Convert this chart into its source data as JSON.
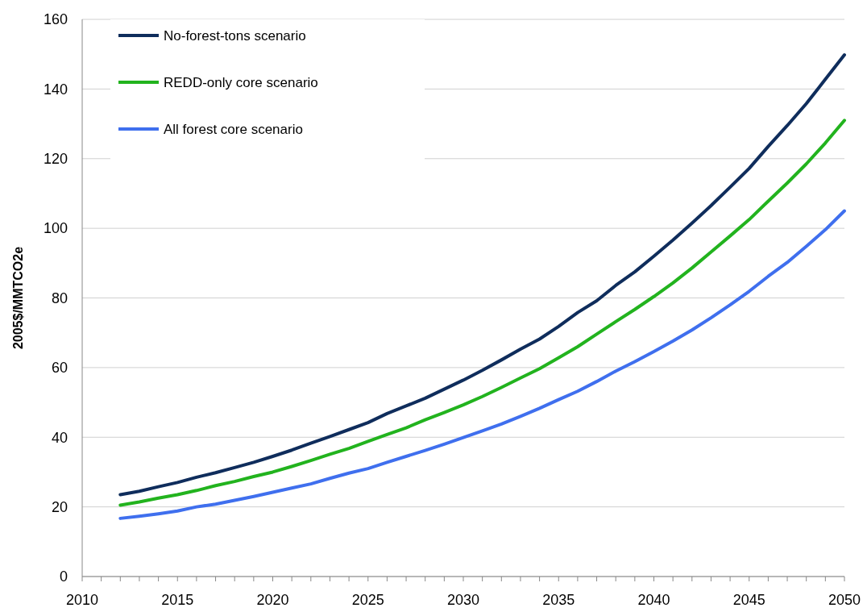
{
  "chart_data": {
    "type": "line",
    "ylabel": "2005$/MMTCO2e",
    "x": [
      2012,
      2013,
      2014,
      2015,
      2016,
      2017,
      2018,
      2019,
      2020,
      2021,
      2022,
      2023,
      2024,
      2025,
      2026,
      2027,
      2028,
      2029,
      2030,
      2031,
      2032,
      2033,
      2034,
      2035,
      2036,
      2037,
      2038,
      2039,
      2040,
      2041,
      2042,
      2043,
      2044,
      2045,
      2046,
      2047,
      2048,
      2049,
      2050
    ],
    "series": [
      {
        "name": "No-forest-tons scenario",
        "color": "#0f2d5c",
        "values": [
          23.5,
          24.5,
          25.8,
          27,
          28.5,
          29.8,
          31.3,
          32.8,
          34.5,
          36.3,
          38.3,
          40.2,
          42.2,
          44.2,
          46.8,
          49,
          51.2,
          53.8,
          56.4,
          59.2,
          62.2,
          65.3,
          68.2,
          71.8,
          75.8,
          79.2,
          83.6,
          87.5,
          92,
          96.6,
          101.5,
          106.5,
          111.8,
          117.2,
          123.5,
          129.5,
          135.8,
          142.8,
          149.8
        ]
      },
      {
        "name": "REDD-only core scenario",
        "color": "#22b31e",
        "values": [
          20.5,
          21.4,
          22.5,
          23.5,
          24.7,
          26.1,
          27.3,
          28.7,
          30,
          31.6,
          33.3,
          35.1,
          36.8,
          38.8,
          40.8,
          42.7,
          45,
          47.1,
          49.3,
          51.7,
          54.3,
          57,
          59.7,
          62.8,
          66,
          69.6,
          73.2,
          76.7,
          80.4,
          84.3,
          88.6,
          93.2,
          97.8,
          102.5,
          107.8,
          113,
          118.5,
          124.5,
          131
        ]
      },
      {
        "name": "All forest core scenario",
        "color": "#3f6fee",
        "values": [
          16.7,
          17.3,
          18,
          18.8,
          20,
          20.8,
          21.9,
          23,
          24.2,
          25.4,
          26.6,
          28.2,
          29.7,
          31,
          32.8,
          34.5,
          36.2,
          38,
          39.9,
          41.8,
          43.8,
          46,
          48.3,
          50.8,
          53.2,
          56,
          59,
          61.7,
          64.6,
          67.6,
          70.8,
          74.3,
          78,
          81.9,
          86.2,
          90.2,
          94.8,
          99.6,
          105
        ]
      }
    ],
    "xlim": [
      2010,
      2050
    ],
    "xticks": [
      2010,
      {
        "value": 2011,
        "label": null
      },
      {
        "value": 2012,
        "label": null
      },
      {
        "value": 2013,
        "label": null
      },
      {
        "value": 2014,
        "label": null
      },
      2015,
      {
        "value": 2016,
        "label": null
      },
      {
        "value": 2017,
        "label": null
      },
      {
        "value": 2018,
        "label": null
      },
      {
        "value": 2019,
        "label": null
      },
      2020,
      {
        "value": 2021,
        "label": null
      },
      {
        "value": 2022,
        "label": null
      },
      {
        "value": 2023,
        "label": null
      },
      {
        "value": 2024,
        "label": null
      },
      2025,
      {
        "value": 2026,
        "label": null
      },
      {
        "value": 2027,
        "label": null
      },
      {
        "value": 2028,
        "label": null
      },
      {
        "value": 2029,
        "label": null
      },
      2030,
      {
        "value": 2031,
        "label": null
      },
      {
        "value": 2032,
        "label": null
      },
      {
        "value": 2033,
        "label": null
      },
      {
        "value": 2034,
        "label": null
      },
      2035,
      {
        "value": 2036,
        "label": null
      },
      {
        "value": 2037,
        "label": null
      },
      {
        "value": 2038,
        "label": null
      },
      {
        "value": 2039,
        "label": null
      },
      2040,
      {
        "value": 2041,
        "label": null
      },
      {
        "value": 2042,
        "label": null
      },
      {
        "value": 2043,
        "label": null
      },
      {
        "value": 2044,
        "label": null
      },
      2045,
      {
        "value": 2046,
        "label": null
      },
      {
        "value": 2047,
        "label": null
      },
      {
        "value": 2048,
        "label": null
      },
      {
        "value": 2049,
        "label": null
      },
      2050
    ],
    "ylim": [
      0,
      160
    ],
    "yticks": [
      0,
      20,
      40,
      60,
      80,
      100,
      120,
      140,
      160
    ],
    "grid": "y",
    "legend": "top left",
    "marker": "none",
    "line_style": "solid"
  }
}
